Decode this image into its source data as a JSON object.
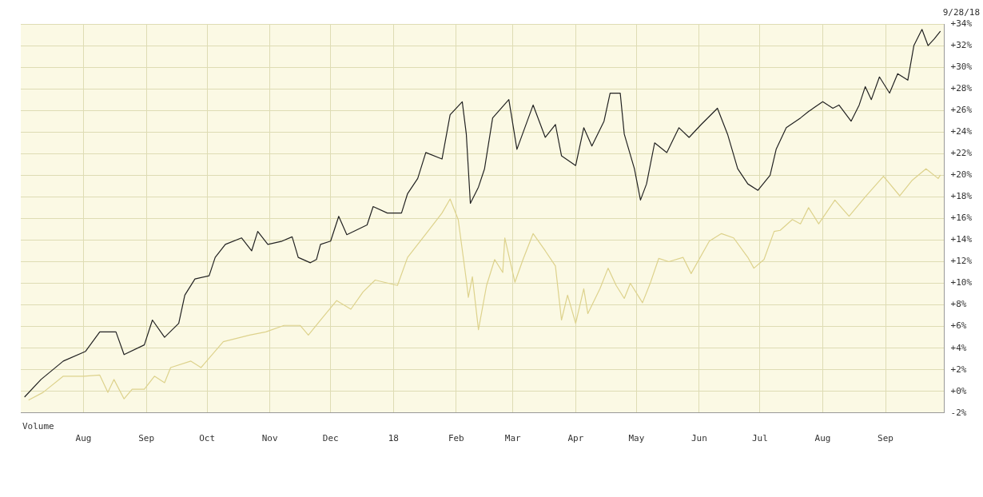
{
  "chart_data": {
    "type": "line",
    "annotations": [
      "9/28/18",
      "Volume"
    ],
    "series": [
      {
        "color": "#222222",
        "x": [
          "2017-07-03",
          "2017-07-11",
          "2017-07-22",
          "2017-08-02",
          "2017-08-09",
          "2017-08-17",
          "2017-08-21",
          "2017-08-31",
          "2017-09-04",
          "2017-09-10",
          "2017-09-17",
          "2017-09-20",
          "2017-09-25",
          "2017-10-02",
          "2017-10-05",
          "2017-10-10",
          "2017-10-18",
          "2017-10-23",
          "2017-10-26",
          "2017-10-31",
          "2017-11-07",
          "2017-11-12",
          "2017-11-15",
          "2017-11-21",
          "2017-11-24",
          "2017-11-26",
          "2017-12-01",
          "2017-12-05",
          "2017-12-09",
          "2017-12-19",
          "2017-12-22",
          "2017-12-29",
          "2018-01-05",
          "2018-01-08",
          "2018-01-13",
          "2018-01-17",
          "2018-01-25",
          "2018-01-29",
          "2018-02-04",
          "2018-02-06",
          "2018-02-08",
          "2018-02-12",
          "2018-02-15",
          "2018-02-19",
          "2018-02-27",
          "2018-03-03",
          "2018-03-11",
          "2018-03-17",
          "2018-03-22",
          "2018-03-25",
          "2018-04-01",
          "2018-04-05",
          "2018-04-09",
          "2018-04-15",
          "2018-04-18",
          "2018-04-23",
          "2018-04-25",
          "2018-04-30",
          "2018-05-03",
          "2018-05-06",
          "2018-05-10",
          "2018-05-16",
          "2018-05-22",
          "2018-05-27",
          "2018-06-02",
          "2018-06-10",
          "2018-06-15",
          "2018-06-20",
          "2018-06-25",
          "2018-06-30",
          "2018-07-06",
          "2018-07-09",
          "2018-07-14",
          "2018-07-21",
          "2018-07-25",
          "2018-08-01",
          "2018-08-06",
          "2018-08-09",
          "2018-08-15",
          "2018-08-19",
          "2018-08-22",
          "2018-08-25",
          "2018-08-29",
          "2018-09-03",
          "2018-09-07",
          "2018-09-12",
          "2018-09-15",
          "2018-09-19",
          "2018-09-22",
          "2018-09-25",
          "2018-09-28"
        ],
        "values": [
          -0.5,
          1.1,
          2.8,
          3.7,
          5.5,
          5.5,
          3.4,
          4.3,
          6.6,
          5.0,
          6.3,
          8.9,
          10.4,
          10.7,
          12.4,
          13.6,
          14.2,
          13.0,
          14.8,
          13.6,
          13.9,
          14.3,
          12.4,
          11.9,
          12.2,
          13.6,
          13.9,
          16.2,
          14.5,
          15.4,
          17.1,
          16.5,
          16.5,
          18.3,
          19.7,
          22.1,
          21.5,
          25.6,
          26.8,
          23.8,
          17.4,
          18.9,
          20.6,
          25.3,
          27.0,
          22.4,
          26.5,
          23.5,
          24.7,
          21.8,
          20.9,
          24.4,
          22.7,
          25.0,
          27.6,
          27.6,
          23.8,
          20.6,
          17.7,
          19.2,
          23.0,
          22.1,
          24.4,
          23.5,
          24.7,
          26.2,
          23.8,
          20.6,
          19.2,
          18.6,
          20.0,
          22.4,
          24.4,
          25.3,
          25.9,
          26.8,
          26.2,
          26.5,
          25.0,
          26.5,
          28.2,
          27.0,
          29.1,
          27.6,
          29.4,
          28.8,
          32.0,
          33.5,
          32.0,
          32.6,
          33.3
        ]
      },
      {
        "color": "#ddd28c",
        "x": [
          "2017-07-05",
          "2017-07-12",
          "2017-07-22",
          "2017-08-01",
          "2017-08-09",
          "2017-08-13",
          "2017-08-16",
          "2017-08-21",
          "2017-08-25",
          "2017-08-31",
          "2017-09-05",
          "2017-09-10",
          "2017-09-13",
          "2017-09-23",
          "2017-09-28",
          "2017-10-09",
          "2017-10-22",
          "2017-10-30",
          "2017-11-08",
          "2017-11-16",
          "2017-11-20",
          "2017-11-26",
          "2017-12-04",
          "2017-12-11",
          "2017-12-17",
          "2017-12-23",
          "2018-01-03",
          "2018-01-08",
          "2018-01-18",
          "2018-01-25",
          "2018-01-29",
          "2018-02-02",
          "2018-02-06",
          "2018-02-07",
          "2018-02-09",
          "2018-02-12",
          "2018-02-16",
          "2018-02-20",
          "2018-02-24",
          "2018-02-25",
          "2018-03-02",
          "2018-03-06",
          "2018-03-11",
          "2018-03-17",
          "2018-03-22",
          "2018-03-25",
          "2018-03-28",
          "2018-04-01",
          "2018-04-05",
          "2018-04-07",
          "2018-04-13",
          "2018-04-17",
          "2018-04-21",
          "2018-04-25",
          "2018-04-28",
          "2018-05-04",
          "2018-05-08",
          "2018-05-12",
          "2018-05-17",
          "2018-05-24",
          "2018-05-28",
          "2018-06-06",
          "2018-06-12",
          "2018-06-18",
          "2018-06-25",
          "2018-06-28",
          "2018-07-03",
          "2018-07-08",
          "2018-07-11",
          "2018-07-17",
          "2018-07-21",
          "2018-07-25",
          "2018-07-30",
          "2018-08-07",
          "2018-08-14",
          "2018-08-22",
          "2018-08-31",
          "2018-09-08",
          "2018-09-14",
          "2018-09-21",
          "2018-09-27",
          "2018-09-28"
        ],
        "values": [
          -0.8,
          -0.1,
          1.4,
          1.4,
          1.5,
          -0.1,
          1.1,
          -0.7,
          0.2,
          0.2,
          1.4,
          0.8,
          2.2,
          2.8,
          2.2,
          4.6,
          5.2,
          5.5,
          6.1,
          6.1,
          5.2,
          6.6,
          8.4,
          7.6,
          9.2,
          10.3,
          9.8,
          12.4,
          14.8,
          16.5,
          17.8,
          15.9,
          10.3,
          8.7,
          10.6,
          5.7,
          9.8,
          12.2,
          11.0,
          14.2,
          10.1,
          12.2,
          14.6,
          13.0,
          11.6,
          6.6,
          8.9,
          6.3,
          9.5,
          7.2,
          9.5,
          11.4,
          9.8,
          8.6,
          10.0,
          8.2,
          10.1,
          12.3,
          12.0,
          12.4,
          10.9,
          13.9,
          14.6,
          14.2,
          12.4,
          11.4,
          12.2,
          14.8,
          14.9,
          15.9,
          15.5,
          17.0,
          15.5,
          17.7,
          16.2,
          18.0,
          19.9,
          18.1,
          19.5,
          20.6,
          19.7,
          20.0
        ]
      }
    ],
    "xlim": [
      "2017-07-01",
      "2018-09-30"
    ],
    "xticks": [
      {
        "value": "2017-08-01",
        "label": "Aug"
      },
      {
        "value": "2017-09-01",
        "label": "Sep"
      },
      {
        "value": "2017-10-01",
        "label": "Oct"
      },
      {
        "value": "2017-11-01",
        "label": "Nov"
      },
      {
        "value": "2017-12-01",
        "label": "Dec"
      },
      {
        "value": "2018-01-01",
        "label": "18"
      },
      {
        "value": "2018-02-01",
        "label": "Feb"
      },
      {
        "value": "2018-03-01",
        "label": "Mar"
      },
      {
        "value": "2018-04-01",
        "label": "Apr"
      },
      {
        "value": "2018-05-01",
        "label": "May"
      },
      {
        "value": "2018-06-01",
        "label": "Jun"
      },
      {
        "value": "2018-07-01",
        "label": "Jul"
      },
      {
        "value": "2018-08-01",
        "label": "Aug"
      },
      {
        "value": "2018-09-01",
        "label": "Sep"
      }
    ],
    "ylim": [
      -2,
      34
    ],
    "yticks": [
      {
        "value": -2,
        "label": "-2%"
      },
      {
        "value": 0,
        "label": "+0%"
      },
      {
        "value": 2,
        "label": "+2%"
      },
      {
        "value": 4,
        "label": "+4%"
      },
      {
        "value": 6,
        "label": "+6%"
      },
      {
        "value": 8,
        "label": "+8%"
      },
      {
        "value": 10,
        "label": "+10%"
      },
      {
        "value": 12,
        "label": "+12%"
      },
      {
        "value": 14,
        "label": "+14%"
      },
      {
        "value": 16,
        "label": "+16%"
      },
      {
        "value": 18,
        "label": "+18%"
      },
      {
        "value": 20,
        "label": "+20%"
      },
      {
        "value": 22,
        "label": "+22%"
      },
      {
        "value": 24,
        "label": "+24%"
      },
      {
        "value": 26,
        "label": "+26%"
      },
      {
        "value": 28,
        "label": "+28%"
      },
      {
        "value": 30,
        "label": "+30%"
      },
      {
        "value": 32,
        "label": "+32%"
      },
      {
        "value": 34,
        "label": "+34%"
      }
    ],
    "grid": true,
    "legend": false,
    "marker": "none",
    "line_style": "solid"
  }
}
